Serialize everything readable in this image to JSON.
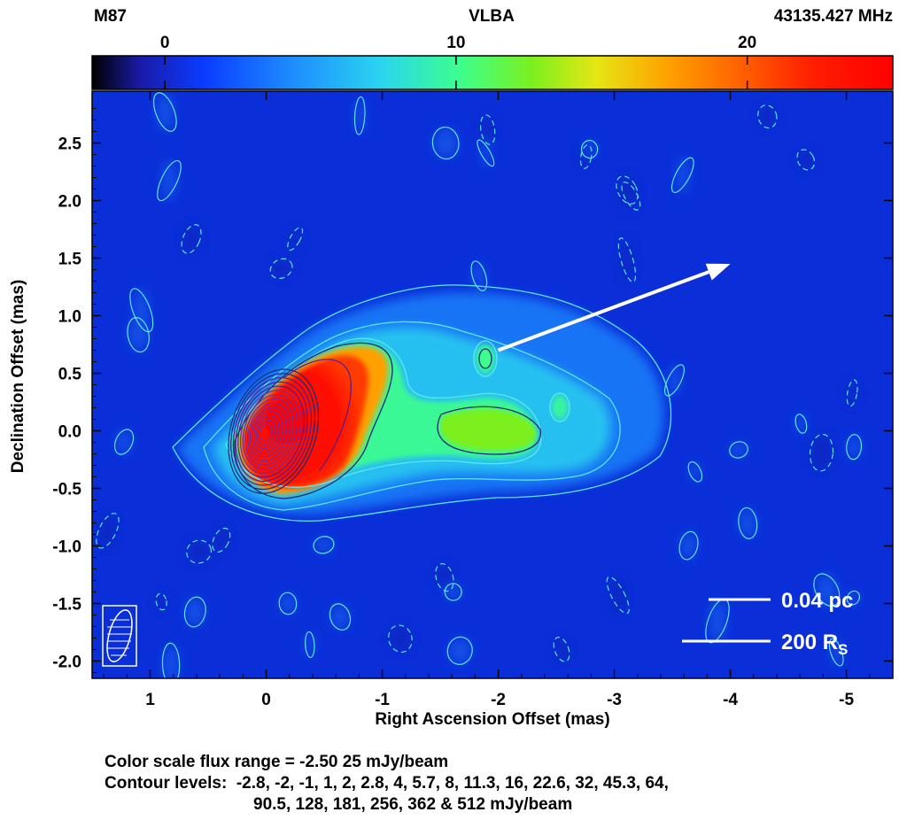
{
  "chart_data": {
    "type": "heatmap",
    "header": {
      "left": "M87",
      "center": "VLBA",
      "right": "43135.427 MHz"
    },
    "colorbar": {
      "min": -2.5,
      "max": 25,
      "ticks": [
        0,
        10,
        20
      ],
      "colors": [
        "#000000",
        "#1a1aa8",
        "#0a3cff",
        "#1e8cff",
        "#2ad4f0",
        "#3cff8c",
        "#7cf01e",
        "#e6e614",
        "#ffa000",
        "#ff5a00",
        "#ff1e00",
        "#ff0000"
      ]
    },
    "xlabel": "Right Ascension Offset (mas)",
    "ylabel": "Declination Offset (mas)",
    "xlim": [
      1.5,
      -5.4
    ],
    "ylim": [
      -2.15,
      2.95
    ],
    "xticks": [
      1,
      0,
      -1,
      -2,
      -3,
      -4,
      -5
    ],
    "yticks": [
      2.5,
      2.0,
      1.5,
      1.0,
      0.5,
      0.0,
      -0.5,
      -1.0,
      -1.5,
      -2.0
    ],
    "ytick_labels": [
      "2.5",
      "2.0",
      "1.5",
      "1.0",
      "0.5",
      "0.0",
      "-0.5",
      "-1.0",
      "-1.5",
      "-2.0"
    ],
    "background_color": "#0a2fd8",
    "contour_color_outer": "#5ee6f2",
    "contour_color_inner": "#7a2a9a",
    "arrow": {
      "from": [
        -2.0,
        0.7
      ],
      "to": [
        -4.0,
        1.45
      ]
    },
    "scale_bars": [
      {
        "label": "0.04 pc"
      },
      {
        "label": "200 R",
        "subscript": "S"
      }
    ],
    "caption": {
      "line1": "Color scale flux range = -2.50 25 mJy/beam",
      "line2": "Contour levels:  -2.8, -2, -1, 1, 2, 2.8, 4, 5.7, 8, 11.3, 16, 22.6, 32, 45.3, 64,",
      "line3": "90.5, 128, 181, 256, 362 & 512 mJy/beam"
    }
  }
}
